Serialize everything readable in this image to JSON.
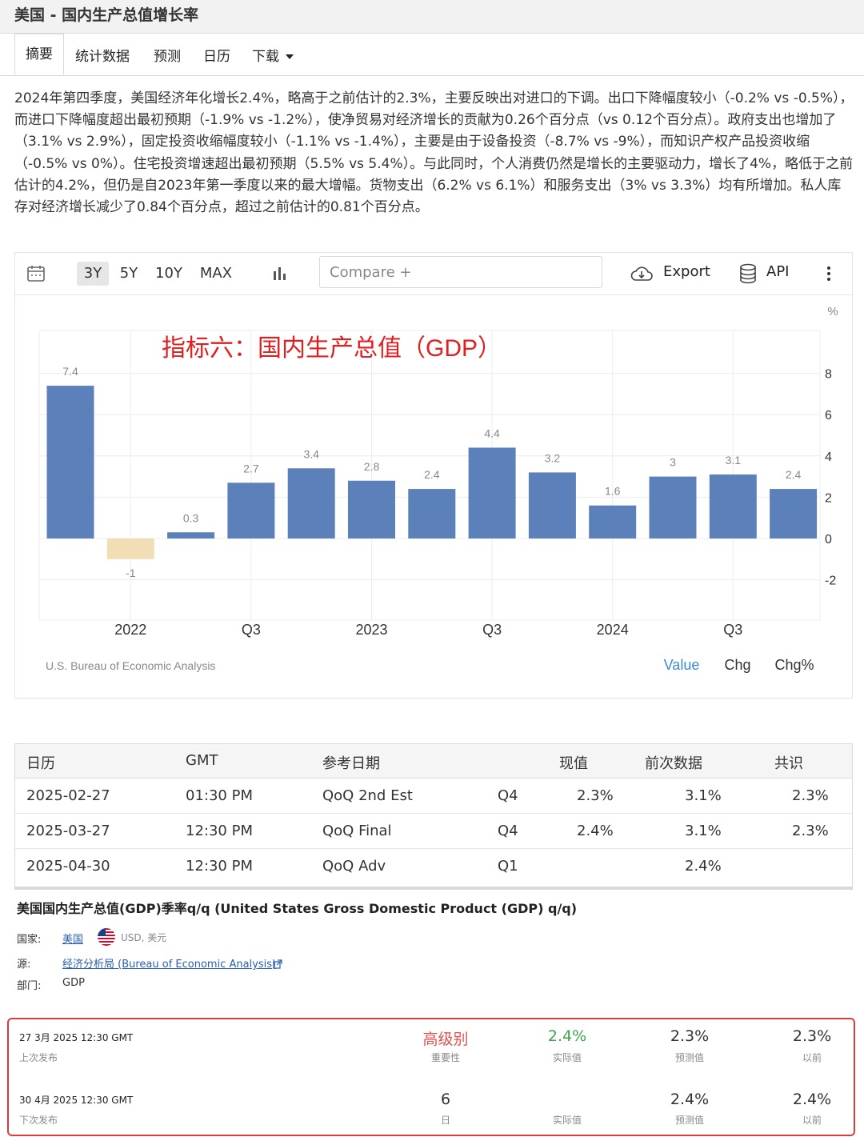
{
  "header": {
    "title": "美国 - 国内生产总值增长率"
  },
  "tabs": [
    {
      "label": "摘要"
    },
    {
      "label": "统计数据"
    },
    {
      "label": "预测"
    },
    {
      "label": "日历"
    },
    {
      "label": "下载"
    }
  ],
  "summary": "2024年第四季度，美国经济年化增长2.4%，略高于之前估计的2.3%，主要反映出对进口的下调。出口下降幅度较小（-0.2% vs -0.5%），而进口下降幅度超出最初预期（-1.9% vs -1.2%），使净贸易对经济增长的贡献为0.26个百分点（vs 0.12个百分点）。政府支出也增加了（3.1% vs 2.9%），固定投资收缩幅度较小（-1.1% vs -1.4%），主要是由于设备投资（-8.7% vs -9%），而知识产权产品投资收缩（-0.5% vs 0%）。住宅投资增速超出最初预期（5.5% vs 5.4%）。与此同时，个人消费仍然是增长的主要驱动力，增长了4%，略低于之前估计的4.2%，但仍是自2023年第一季度以来的最大增幅。货物支出（6.2% vs 6.1%）和服务支出（3% vs 3.3%）均有所增加。私人库存对经济增长减少了0.84个百分点，超过之前估计的0.81个百分点。",
  "toolbar": {
    "ranges": [
      "3Y",
      "5Y",
      "10Y",
      "MAX"
    ],
    "selected_range": "3Y",
    "compare_placeholder": "Compare +",
    "export_label": "Export",
    "api_label": "API"
  },
  "chart_data": {
    "type": "bar",
    "title": "指标六：国内生产总值（GDP）",
    "unit_label": "%",
    "values": [
      7.4,
      -1,
      0.3,
      2.7,
      3.4,
      2.8,
      2.4,
      4.4,
      3.2,
      1.6,
      3,
      3.1,
      2.4
    ],
    "value_labels": [
      "7.4",
      "-1",
      "0.3",
      "2.7",
      "3.4",
      "2.8",
      "2.4",
      "4.4",
      "3.2",
      "1.6",
      "3",
      "3.1",
      "2.4"
    ],
    "x_tick_labels": [
      "2022",
      "Q3",
      "2023",
      "Q3",
      "2024",
      "Q3"
    ],
    "y_ticks": [
      8,
      6,
      4,
      2,
      0,
      -2
    ],
    "ylim": [
      -2,
      9
    ],
    "bar_color": "#5b80ba",
    "negative_bar_color": "#f1deb4",
    "grid": true,
    "source": "U.S. Bureau of Economic Analysis",
    "view_options": [
      "Value",
      "Chg",
      "Chg%"
    ],
    "selected_view": "Value",
    "selected_view_color": "#3d89d5"
  },
  "calendar": {
    "headers": [
      "日历",
      "GMT",
      "参考日期",
      "现值",
      "前次数据",
      "共识"
    ],
    "rows": [
      {
        "date": "2025-02-27",
        "time": "01:30 PM",
        "ref": "QoQ 2nd Est",
        "period": "Q4",
        "actual": "2.3%",
        "previous": "3.1%",
        "consensus": "2.3%"
      },
      {
        "date": "2025-03-27",
        "time": "12:30 PM",
        "ref": "QoQ Final",
        "period": "Q4",
        "actual": "2.4%",
        "previous": "3.1%",
        "consensus": "2.3%"
      },
      {
        "date": "2025-04-30",
        "time": "12:30 PM",
        "ref": "QoQ Adv",
        "period": "Q1",
        "actual": "",
        "previous": "2.4%",
        "consensus": ""
      }
    ]
  },
  "details": {
    "title": "美国国内生产总值(GDP)季率q/q (United States Gross Domestic Product (GDP) q/q)",
    "country_label": "国家:",
    "country_value": "美国",
    "currency": "USD, 美元",
    "source_label": "源:",
    "source_value": "经济分析局 (Bureau of Economic Analysis)",
    "sector_label": "部门:",
    "sector_value": "GDP"
  },
  "releases": {
    "last": {
      "date": "27 3月 2025 12:30 GMT",
      "sub": "上次发布",
      "importance": "高级别",
      "importance_label": "重要性",
      "actual": "2.4%",
      "actual_label": "实际值",
      "forecast": "2.3%",
      "forecast_label": "预测值",
      "previous": "2.3%",
      "previous_label": "以前"
    },
    "next": {
      "date": "30 4月 2025 12:30 GMT",
      "sub": "下次发布",
      "days": "6",
      "days_label": "日",
      "actual_label": "实际值",
      "forecast": "2.4%",
      "forecast_label": "预测值",
      "previous": "2.4%",
      "previous_label": "以前"
    },
    "importance_color": "#e05252",
    "actual_color": "#3fa34d"
  }
}
